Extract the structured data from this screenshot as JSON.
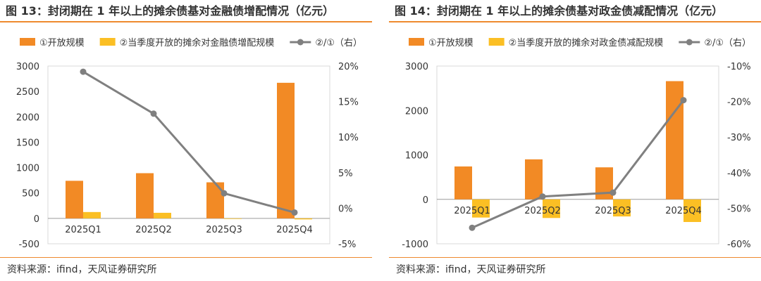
{
  "colors": {
    "bar1": "#f28a25",
    "bar2": "#fbbf24",
    "line": "#808080",
    "grid": "#d9d9d9",
    "accent": "#ee8a2e"
  },
  "chart_data": [
    {
      "type": "bar",
      "title": "图 13：封闭期在 1 年以上的摊余债基对金融债增配情况（亿元）",
      "categories": [
        "2025Q1",
        "2025Q2",
        "2025Q3",
        "2025Q4"
      ],
      "series": [
        {
          "name": "①开放规模",
          "type": "bar",
          "axis": "left",
          "values": [
            740,
            890,
            710,
            2670
          ]
        },
        {
          "name": "②当季度开放的摊余对金融债增配规模",
          "type": "bar",
          "axis": "left",
          "values": [
            125,
            110,
            0,
            -20
          ]
        },
        {
          "name": "②/①（右）",
          "type": "line",
          "axis": "right",
          "values": [
            19.2,
            13.3,
            2.1,
            -0.6
          ]
        }
      ],
      "y_left": {
        "min": -500,
        "max": 3000,
        "ticks": [
          "-500",
          "0",
          "500",
          "1000",
          "1500",
          "2000",
          "2500",
          "3000"
        ]
      },
      "y_right": {
        "min": -5,
        "max": 20,
        "ticks": [
          "-5%",
          "0%",
          "5%",
          "10%",
          "15%",
          "20%"
        ]
      },
      "legend_position": "top",
      "source": "资料来源：ifind，天风证券研究所"
    },
    {
      "type": "bar",
      "title": "图 14：封闭期在 1 年以上的摊余债基对政金债减配情况（亿元）",
      "categories": [
        "2025Q1",
        "2025Q2",
        "2025Q3",
        "2025Q4"
      ],
      "series": [
        {
          "name": "①开放规模",
          "type": "bar",
          "axis": "left",
          "values": [
            740,
            900,
            720,
            2660
          ]
        },
        {
          "name": "②当季度开放的摊余对政金债减配规模",
          "type": "bar",
          "axis": "left",
          "values": [
            -410,
            -420,
            -385,
            -510
          ]
        },
        {
          "name": "②/①（右）",
          "type": "line",
          "axis": "right",
          "values": [
            -55.5,
            -46.7,
            -45.6,
            -19.6
          ]
        }
      ],
      "y_left": {
        "min": -1000,
        "max": 3000,
        "ticks": [
          "-1000",
          "0",
          "1000",
          "2000",
          "3000"
        ]
      },
      "y_right": {
        "min": -60,
        "max": -10,
        "ticks": [
          "-60%",
          "-50%",
          "-40%",
          "-30%",
          "-20%",
          "-10%"
        ]
      },
      "legend_position": "top",
      "source": "资料来源：ifind，天风证券研究所"
    }
  ]
}
